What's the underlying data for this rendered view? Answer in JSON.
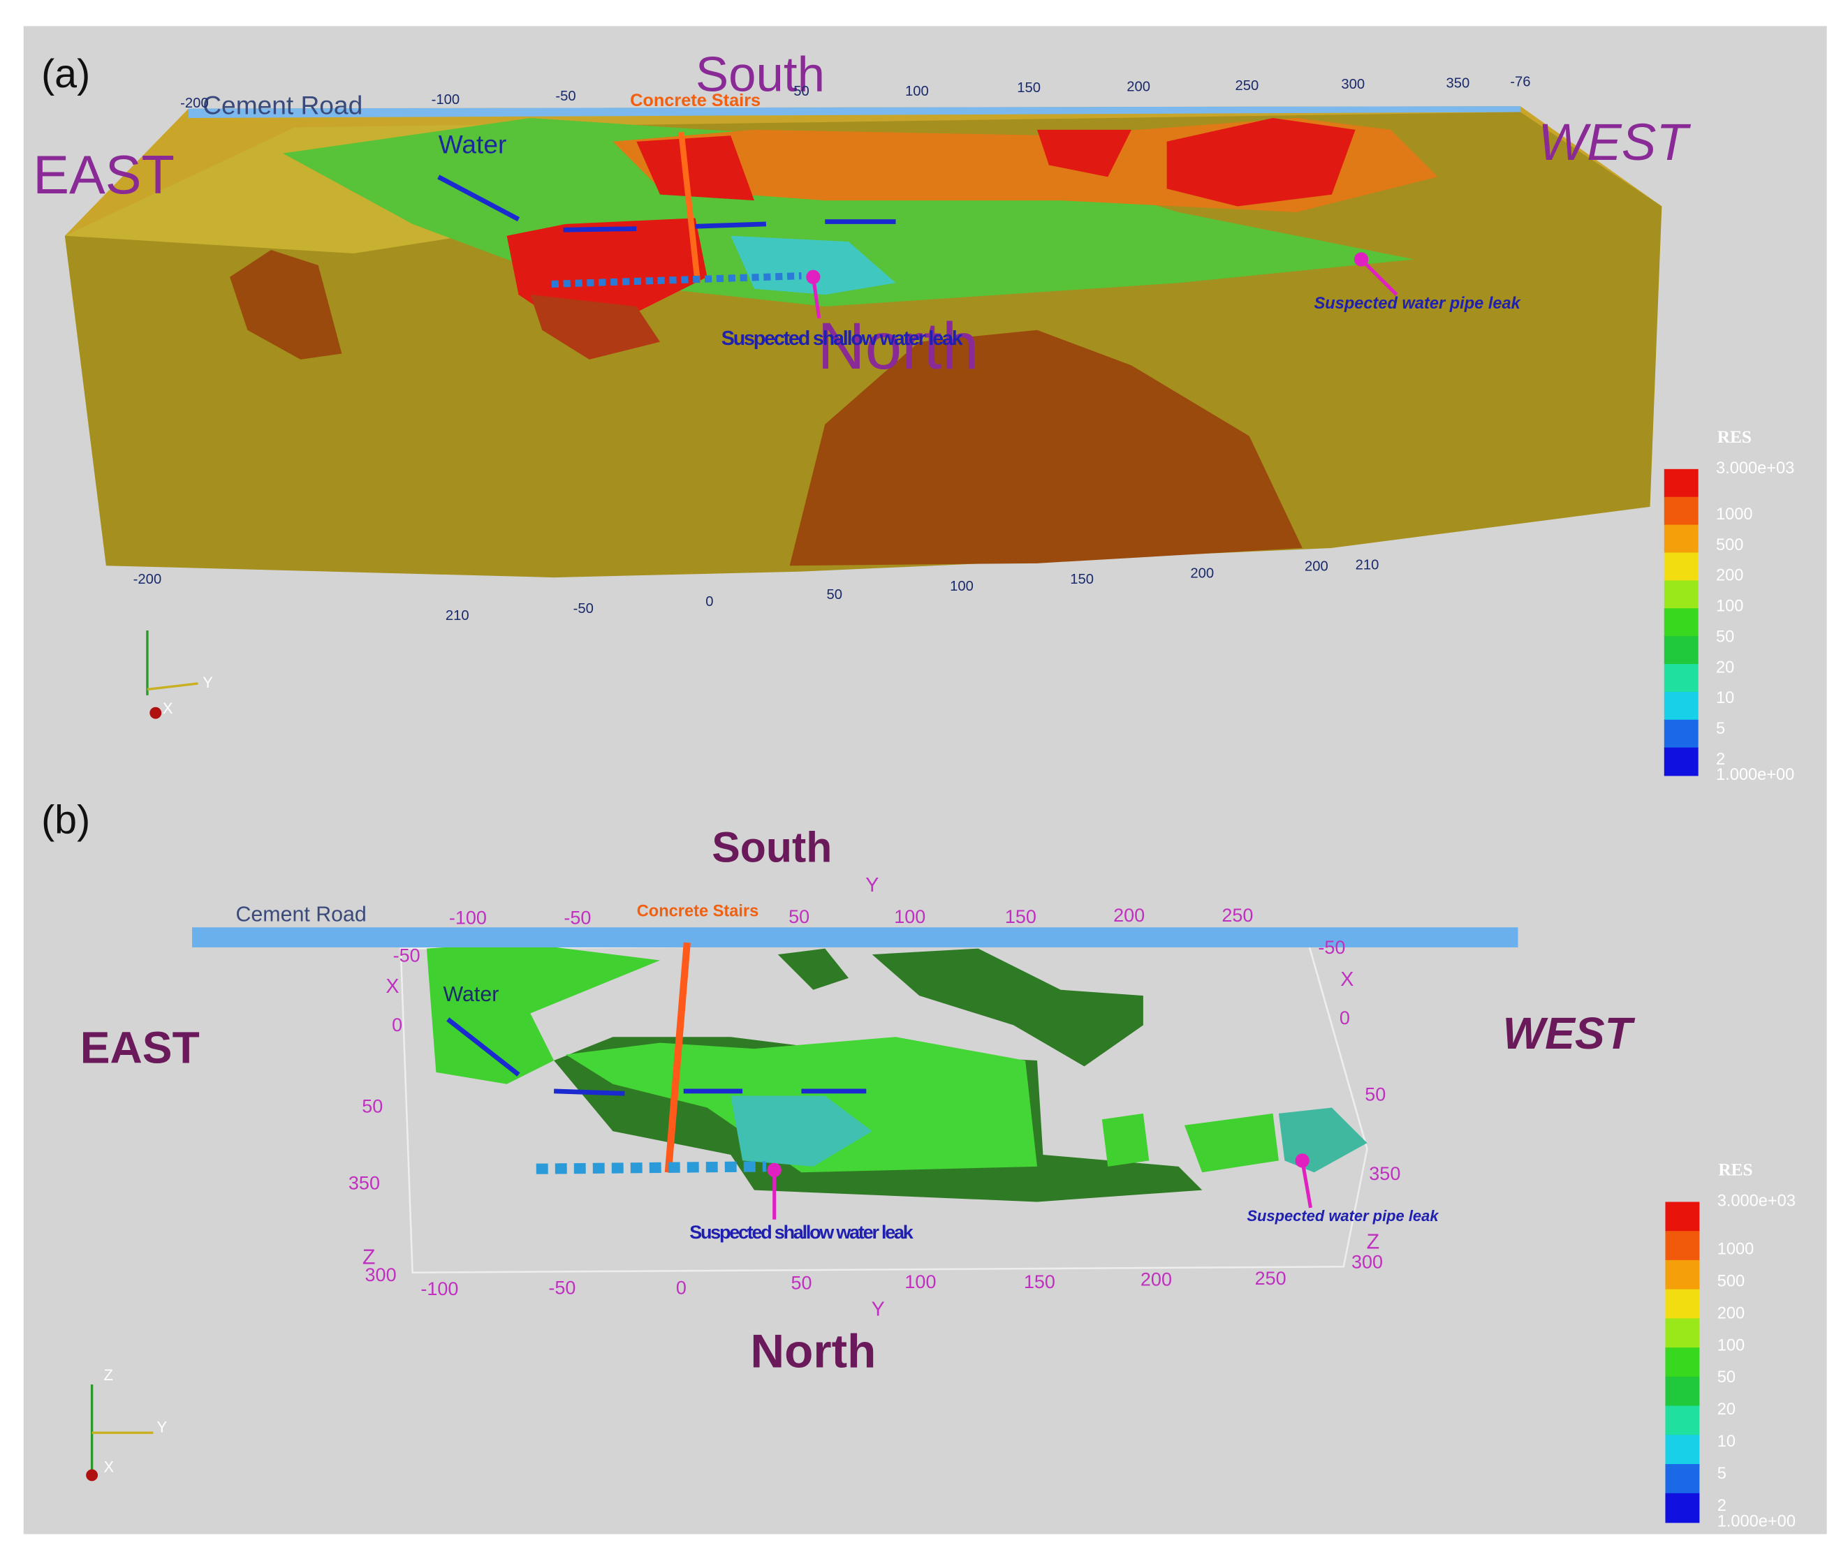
{
  "panel_a": {
    "label": "(a)",
    "south": "South",
    "north": "North",
    "east": "EAST",
    "west": "WEST",
    "road": "Cement Road",
    "stairs": "Concrete Stairs",
    "water": "Water",
    "leak_shallow": "Suspected shallow water leak",
    "leak_pipe": "Suspected water pipe leak",
    "top_ticks": [
      "-200",
      "-100",
      "-50",
      "50",
      "100",
      "150",
      "200",
      "250",
      "300",
      "350",
      "-76"
    ],
    "bottom_ticks": [
      "-200",
      "210",
      "-50",
      "0",
      "50",
      "100",
      "150",
      "200",
      "200",
      "210"
    ],
    "triad": [
      "Y",
      "X"
    ],
    "colorbar": {
      "title": "RES",
      "labels": [
        "3.000e+03",
        "1000",
        "500",
        "200",
        "100",
        "50",
        "20",
        "10",
        "5",
        "2",
        "1.000e+00"
      ]
    }
  },
  "panel_b": {
    "label": "(b)",
    "south": "South",
    "north": "North",
    "east": "EAST",
    "west": "WEST",
    "road": "Cement Road",
    "stairs": "Concrete Stairs",
    "water": "Water",
    "leak_shallow": "Suspected shallow water leak",
    "leak_pipe": "Suspected water pipe leak",
    "top_axis": "Y",
    "top_ticks": [
      "-100",
      "-50",
      "50",
      "100",
      "150",
      "200",
      "250"
    ],
    "bottom_axis": "Y",
    "bottom_ticks": [
      "-100",
      "-50",
      "0",
      "50",
      "100",
      "150",
      "200",
      "250"
    ],
    "left_axis": "X",
    "left_ticks": [
      "-50",
      "0",
      "50",
      "350"
    ],
    "left_z": "Z",
    "left_z_tick": "300",
    "right_axis": "X",
    "right_ticks": [
      "-50",
      "0",
      "50",
      "350"
    ],
    "right_z": "Z",
    "right_z_tick": "300",
    "triad": [
      "Z",
      "Y",
      "X"
    ],
    "colorbar": {
      "title": "RES",
      "labels": [
        "3.000e+03",
        "1000",
        "500",
        "200",
        "100",
        "50",
        "20",
        "10",
        "5",
        "2",
        "1.000e+00"
      ]
    }
  }
}
